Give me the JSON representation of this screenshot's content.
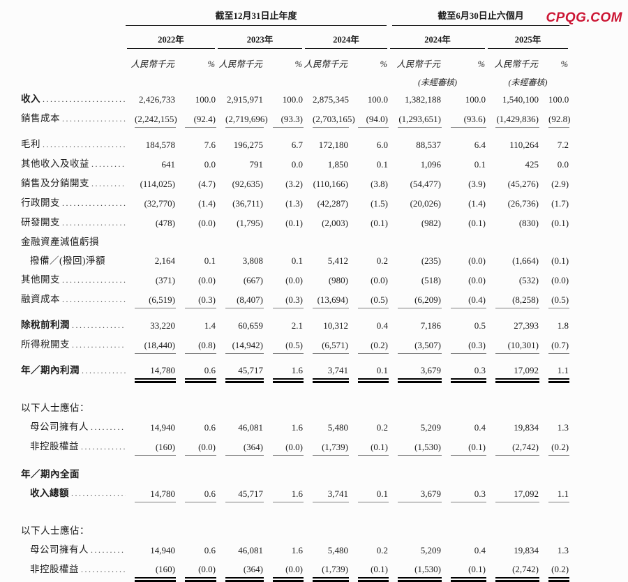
{
  "watermark": {
    "text": "CPQG.COM",
    "color": "#cc1634"
  },
  "table": {
    "period_groups": [
      {
        "title": "截至12月31日止年度",
        "years": [
          "2022年",
          "2023年",
          "2024年"
        ]
      },
      {
        "title": "截至6月30日止六個月",
        "years": [
          "2024年",
          "2025年"
        ]
      }
    ],
    "unit_label": "人民幣千元",
    "percent_label": "%",
    "unaudited_label": "(未經審核)",
    "leader_dots": "..............................................",
    "rows": [
      {
        "label": "收入",
        "bold": true,
        "leader": true,
        "rule": "none",
        "values": [
          "2,426,733",
          "100.0",
          "2,915,971",
          "100.0",
          "2,875,345",
          "100.0",
          "1,382,188",
          "100.0",
          "1,540,100",
          "100.0"
        ]
      },
      {
        "label": "銷售成本",
        "leader": true,
        "rule": "single",
        "values": [
          "(2,242,155)",
          "(92.4)",
          "(2,719,696)",
          "(93.3)",
          "(2,703,165)",
          "(94.0)",
          "(1,293,651)",
          "(93.6)",
          "(1,429,836)",
          "(92.8)"
        ]
      },
      {
        "label": "毛利",
        "leader": true,
        "gap": 9,
        "values": [
          "184,578",
          "7.6",
          "196,275",
          "6.7",
          "172,180",
          "6.0",
          "88,537",
          "6.4",
          "110,264",
          "7.2"
        ]
      },
      {
        "label": "其他收入及收益",
        "leader": true,
        "values": [
          "641",
          "0.0",
          "791",
          "0.0",
          "1,850",
          "0.1",
          "1,096",
          "0.1",
          "425",
          "0.0"
        ]
      },
      {
        "label": "銷售及分銷開支",
        "leader": true,
        "values": [
          "(114,025)",
          "(4.7)",
          "(92,635)",
          "(3.2)",
          "(110,166)",
          "(3.8)",
          "(54,477)",
          "(3.9)",
          "(45,276)",
          "(2.9)"
        ]
      },
      {
        "label": "行政開支",
        "leader": true,
        "values": [
          "(32,770)",
          "(1.4)",
          "(36,711)",
          "(1.3)",
          "(42,287)",
          "(1.5)",
          "(20,026)",
          "(1.4)",
          "(26,736)",
          "(1.7)"
        ]
      },
      {
        "label": "研發開支",
        "leader": true,
        "values": [
          "(478)",
          "(0.0)",
          "(1,795)",
          "(0.1)",
          "(2,003)",
          "(0.1)",
          "(982)",
          "(0.1)",
          "(830)",
          "(0.1)"
        ]
      },
      {
        "label": "金融資產減值虧損"
      },
      {
        "label": "撥備／(撥回)淨額",
        "indent": true,
        "values": [
          "2,164",
          "0.1",
          "3,808",
          "0.1",
          "5,412",
          "0.2",
          "(235)",
          "(0.0)",
          "(1,664)",
          "(0.1)"
        ]
      },
      {
        "label": "其他開支",
        "leader": true,
        "values": [
          "(371)",
          "(0.0)",
          "(667)",
          "(0.0)",
          "(980)",
          "(0.0)",
          "(518)",
          "(0.0)",
          "(532)",
          "(0.0)"
        ]
      },
      {
        "label": "融資成本",
        "leader": true,
        "rule": "single",
        "values": [
          "(6,519)",
          "(0.3)",
          "(8,407)",
          "(0.3)",
          "(13,694)",
          "(0.5)",
          "(6,209)",
          "(0.4)",
          "(8,258)",
          "(0.5)"
        ]
      },
      {
        "label": "除稅前利潤",
        "bold": true,
        "leader": true,
        "gap": 9,
        "values": [
          "33,220",
          "1.4",
          "60,659",
          "2.1",
          "10,312",
          "0.4",
          "7,186",
          "0.5",
          "27,393",
          "1.8"
        ]
      },
      {
        "label": "所得稅開支",
        "leader": true,
        "rule": "single",
        "values": [
          "(18,440)",
          "(0.8)",
          "(14,942)",
          "(0.5)",
          "(6,571)",
          "(0.2)",
          "(3,507)",
          "(0.3)",
          "(10,301)",
          "(0.7)"
        ]
      },
      {
        "label": "年／期內利潤",
        "bold": true,
        "leader": true,
        "gap": 9,
        "rule": "double",
        "values": [
          "14,780",
          "0.6",
          "45,717",
          "1.6",
          "3,741",
          "0.1",
          "3,679",
          "0.3",
          "17,092",
          "1.1"
        ]
      },
      {
        "label": "以下人士應佔：",
        "gap": 26
      },
      {
        "label": "母公司擁有人",
        "indent": true,
        "leader": true,
        "values": [
          "14,940",
          "0.6",
          "46,081",
          "1.6",
          "5,480",
          "0.2",
          "5,209",
          "0.4",
          "19,834",
          "1.3"
        ]
      },
      {
        "label": "非控股權益",
        "indent": true,
        "leader": true,
        "rule": "single",
        "values": [
          "(160)",
          "(0.0)",
          "(364)",
          "(0.0)",
          "(1,739)",
          "(0.1)",
          "(1,530)",
          "(0.1)",
          "(2,742)",
          "(0.2)"
        ]
      },
      {
        "label": "年／期內全面",
        "bold": true,
        "gap": 12
      },
      {
        "label": "收入總額",
        "bold": true,
        "indent": true,
        "leader": true,
        "rule": "single",
        "values": [
          "14,780",
          "0.6",
          "45,717",
          "1.6",
          "3,741",
          "0.1",
          "3,679",
          "0.3",
          "17,092",
          "1.1"
        ]
      },
      {
        "label": "以下人士應佔：",
        "gap": 26
      },
      {
        "label": "母公司擁有人",
        "indent": true,
        "leader": true,
        "values": [
          "14,940",
          "0.6",
          "46,081",
          "1.6",
          "5,480",
          "0.2",
          "5,209",
          "0.4",
          "19,834",
          "1.3"
        ]
      },
      {
        "label": "非控股權益",
        "indent": true,
        "leader": true,
        "rule": "double",
        "values": [
          "(160)",
          "(0.0)",
          "(364)",
          "(0.0)",
          "(1,739)",
          "(0.1)",
          "(1,530)",
          "(0.1)",
          "(2,742)",
          "(0.2)"
        ]
      }
    ]
  }
}
